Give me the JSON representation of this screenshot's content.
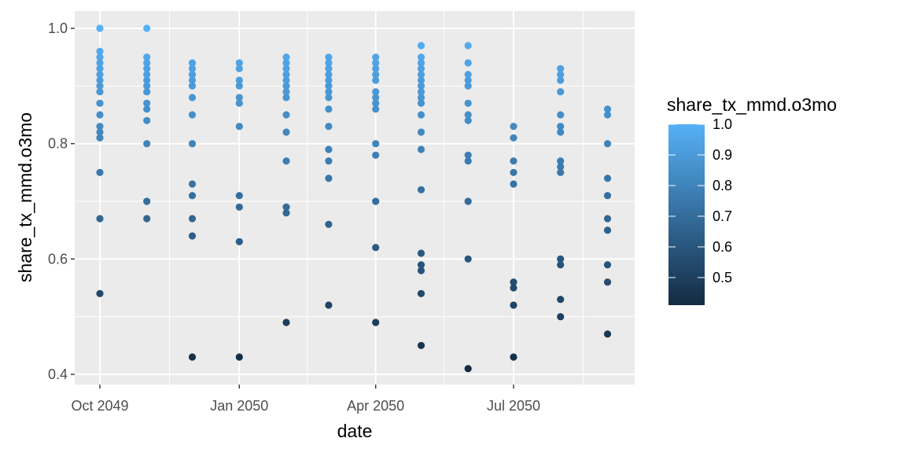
{
  "chart_data": {
    "type": "scatter",
    "xlabel": "date",
    "ylabel": "share_tx_mmd.o3mo",
    "x_ticks": [
      "Oct 2049",
      "Jan 2050",
      "Apr 2050",
      "Jul 2050"
    ],
    "y_ticks": [
      "0.4",
      "0.6",
      "0.8",
      "1.0"
    ],
    "ylim": [
      0.39,
      1.02
    ],
    "grid": true,
    "legend": {
      "title": "share_tx_mmd.o3mo",
      "position": "right",
      "labels": [
        "1.0",
        "0.9",
        "0.8",
        "0.7",
        "0.6",
        "0.5"
      ],
      "range": [
        0.41,
        1.0
      ],
      "color_low": "#132B43",
      "color_high": "#56B1F7"
    },
    "panel_color": "#EBEBEB",
    "points": [
      {
        "date": "2049-10-01",
        "values": [
          1.0,
          0.96,
          0.95,
          0.94,
          0.93,
          0.92,
          0.91,
          0.9,
          0.89,
          0.87,
          0.85,
          0.83,
          0.82,
          0.81,
          0.75,
          0.67,
          0.54
        ]
      },
      {
        "date": "2049-11-01",
        "values": [
          1.0,
          0.95,
          0.94,
          0.93,
          0.92,
          0.91,
          0.9,
          0.89,
          0.87,
          0.86,
          0.84,
          0.8,
          0.7,
          0.67
        ]
      },
      {
        "date": "2049-12-01",
        "values": [
          0.94,
          0.93,
          0.92,
          0.91,
          0.9,
          0.88,
          0.85,
          0.8,
          0.73,
          0.71,
          0.67,
          0.64,
          0.43
        ]
      },
      {
        "date": "2050-01-01",
        "values": [
          0.94,
          0.93,
          0.91,
          0.9,
          0.88,
          0.87,
          0.83,
          0.71,
          0.69,
          0.63,
          0.43
        ]
      },
      {
        "date": "2050-02-01",
        "values": [
          0.95,
          0.94,
          0.93,
          0.92,
          0.91,
          0.9,
          0.89,
          0.88,
          0.85,
          0.82,
          0.77,
          0.69,
          0.68,
          0.49
        ]
      },
      {
        "date": "2050-03-01",
        "values": [
          0.95,
          0.94,
          0.93,
          0.92,
          0.91,
          0.9,
          0.89,
          0.88,
          0.86,
          0.83,
          0.79,
          0.77,
          0.74,
          0.66,
          0.52
        ]
      },
      {
        "date": "2050-04-01",
        "values": [
          0.95,
          0.94,
          0.93,
          0.92,
          0.91,
          0.89,
          0.88,
          0.87,
          0.86,
          0.8,
          0.78,
          0.7,
          0.62,
          0.49
        ]
      },
      {
        "date": "2050-05-01",
        "values": [
          0.97,
          0.95,
          0.94,
          0.93,
          0.92,
          0.91,
          0.9,
          0.89,
          0.88,
          0.87,
          0.85,
          0.82,
          0.79,
          0.72,
          0.61,
          0.59,
          0.58,
          0.54,
          0.45
        ]
      },
      {
        "date": "2050-06-01",
        "values": [
          0.97,
          0.94,
          0.92,
          0.91,
          0.9,
          0.87,
          0.85,
          0.84,
          0.78,
          0.77,
          0.7,
          0.6,
          0.41
        ]
      },
      {
        "date": "2050-07-01",
        "values": [
          0.83,
          0.81,
          0.77,
          0.75,
          0.73,
          0.56,
          0.55,
          0.52,
          0.43
        ]
      },
      {
        "date": "2050-08-01",
        "values": [
          0.93,
          0.92,
          0.91,
          0.89,
          0.85,
          0.83,
          0.82,
          0.77,
          0.76,
          0.75,
          0.6,
          0.59,
          0.53,
          0.5
        ]
      },
      {
        "date": "2050-09-01",
        "values": [
          0.86,
          0.85,
          0.8,
          0.74,
          0.71,
          0.67,
          0.65,
          0.59,
          0.56,
          0.47
        ]
      }
    ]
  }
}
